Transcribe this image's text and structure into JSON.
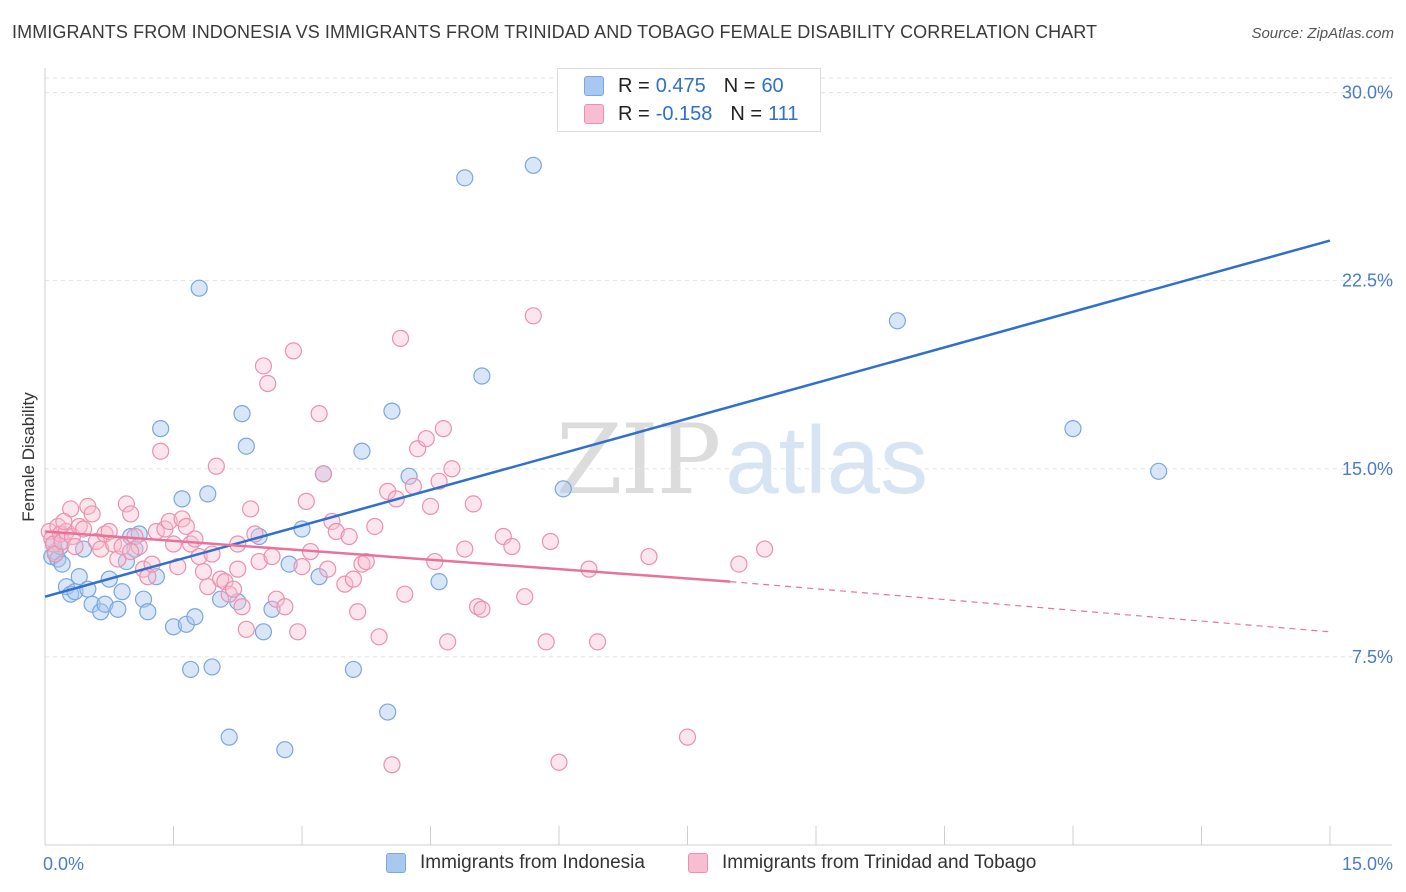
{
  "title": "IMMIGRANTS FROM INDONESIA VS IMMIGRANTS FROM TRINIDAD AND TOBAGO FEMALE DISABILITY CORRELATION CHART",
  "source": "Source: ZipAtlas.com",
  "watermark": {
    "zip": "ZIP",
    "atlas": "atlas"
  },
  "legend": {
    "rows": [
      {
        "r_label": "R =",
        "r_value": "0.475",
        "n_label": "N =",
        "n_value": "60",
        "color": "#a9c8f0",
        "border": "#7aa7df"
      },
      {
        "r_label": "R =",
        "r_value": "-0.158",
        "n_label": "N =",
        "n_value": "111",
        "color": "#f7bdd0",
        "border": "#ec90ad"
      }
    ]
  },
  "bottom_legend": [
    {
      "label": "Immigrants from Indonesia",
      "color": "#a9c8f0",
      "border": "#7aa7df"
    },
    {
      "label": "Immigrants from Trinidad and Tobago",
      "color": "#f7bdd0",
      "border": "#ec90ad"
    }
  ],
  "chart_data": {
    "type": "scatter",
    "ylabel": "Female Disability",
    "xlim": [
      0,
      15
    ],
    "ylim": [
      0,
      30.9
    ],
    "x_ticks": [
      "0.0%",
      "15.0%"
    ],
    "y_ticks": [
      {
        "value": 7.5,
        "label": "7.5%"
      },
      {
        "value": 15.0,
        "label": "15.0%"
      },
      {
        "value": 22.5,
        "label": "22.5%"
      },
      {
        "value": 30.0,
        "label": "30.0%"
      }
    ],
    "grid": "horizontal dashed",
    "series": [
      {
        "name": "Immigrants from Indonesia",
        "color": "#7aa7df",
        "fill": "rgba(169,200,240,0.45)",
        "line_color": "#2f6fce",
        "trend": {
          "x0": 0.0,
          "y0": 9.9,
          "x1": 15.0,
          "y1": 24.1
        },
        "points": [
          [
            0.08,
            11.5
          ],
          [
            0.12,
            11.7
          ],
          [
            0.15,
            11.4
          ],
          [
            0.18,
            11.9
          ],
          [
            0.2,
            11.2
          ],
          [
            0.25,
            10.3
          ],
          [
            0.3,
            10.0
          ],
          [
            0.35,
            10.1
          ],
          [
            0.4,
            10.7
          ],
          [
            0.45,
            11.8
          ],
          [
            0.5,
            10.2
          ],
          [
            0.55,
            9.6
          ],
          [
            0.65,
            9.3
          ],
          [
            0.7,
            9.6
          ],
          [
            0.75,
            10.6
          ],
          [
            0.85,
            9.4
          ],
          [
            0.95,
            11.3
          ],
          [
            1.0,
            12.3
          ],
          [
            1.05,
            11.8
          ],
          [
            1.1,
            12.4
          ],
          [
            1.15,
            9.8
          ],
          [
            1.2,
            9.3
          ],
          [
            1.3,
            10.7
          ],
          [
            1.35,
            16.6
          ],
          [
            1.5,
            8.7
          ],
          [
            1.6,
            13.8
          ],
          [
            1.65,
            8.8
          ],
          [
            1.7,
            7.0
          ],
          [
            1.75,
            9.1
          ],
          [
            1.8,
            22.2
          ],
          [
            1.9,
            14.0
          ],
          [
            1.95,
            7.1
          ],
          [
            2.05,
            9.8
          ],
          [
            2.15,
            4.3
          ],
          [
            2.25,
            9.7
          ],
          [
            2.3,
            17.2
          ],
          [
            2.35,
            15.9
          ],
          [
            2.5,
            12.3
          ],
          [
            2.55,
            8.5
          ],
          [
            2.65,
            9.4
          ],
          [
            2.8,
            3.8
          ],
          [
            2.85,
            11.2
          ],
          [
            3.0,
            12.6
          ],
          [
            3.2,
            10.7
          ],
          [
            3.25,
            14.8
          ],
          [
            3.6,
            7.0
          ],
          [
            3.7,
            15.7
          ],
          [
            4.0,
            5.3
          ],
          [
            4.05,
            17.3
          ],
          [
            4.25,
            14.7
          ],
          [
            4.6,
            10.5
          ],
          [
            4.9,
            26.6
          ],
          [
            5.1,
            18.7
          ],
          [
            5.7,
            27.1
          ],
          [
            6.05,
            14.2
          ],
          [
            9.95,
            20.9
          ],
          [
            12.0,
            16.6
          ],
          [
            13.0,
            14.9
          ],
          [
            0.1,
            12.0
          ],
          [
            0.9,
            10.1
          ]
        ]
      },
      {
        "name": "Immigrants from Trinidad and Tobago",
        "color": "#ec90ad",
        "fill": "rgba(247,189,208,0.4)",
        "line_color": "#e8739a",
        "trend": {
          "x0": 0.0,
          "y0": 12.5,
          "x1": 8.0,
          "y1": 10.5
        },
        "trend_dashed": {
          "x0": 8.0,
          "y0": 10.5,
          "x1": 15.0,
          "y1": 8.5
        },
        "points": [
          [
            0.05,
            12.5
          ],
          [
            0.08,
            12.2
          ],
          [
            0.1,
            12.0
          ],
          [
            0.12,
            11.6
          ],
          [
            0.15,
            12.7
          ],
          [
            0.18,
            12.4
          ],
          [
            0.2,
            12.1
          ],
          [
            0.25,
            12.5
          ],
          [
            0.3,
            13.4
          ],
          [
            0.32,
            12.3
          ],
          [
            0.35,
            11.9
          ],
          [
            0.4,
            12.7
          ],
          [
            0.45,
            12.6
          ],
          [
            0.5,
            13.5
          ],
          [
            0.55,
            13.2
          ],
          [
            0.6,
            12.1
          ],
          [
            0.65,
            11.8
          ],
          [
            0.7,
            12.4
          ],
          [
            0.75,
            12.5
          ],
          [
            0.8,
            12.0
          ],
          [
            0.85,
            11.4
          ],
          [
            0.9,
            11.9
          ],
          [
            0.95,
            13.6
          ],
          [
            1.0,
            13.2
          ],
          [
            1.05,
            12.3
          ],
          [
            1.1,
            11.9
          ],
          [
            1.15,
            11.0
          ],
          [
            1.2,
            10.7
          ],
          [
            1.25,
            11.2
          ],
          [
            1.3,
            12.5
          ],
          [
            1.35,
            15.7
          ],
          [
            1.4,
            12.6
          ],
          [
            1.45,
            12.9
          ],
          [
            1.5,
            12.0
          ],
          [
            1.55,
            11.1
          ],
          [
            1.6,
            13.0
          ],
          [
            1.65,
            12.7
          ],
          [
            1.7,
            12.0
          ],
          [
            1.75,
            12.2
          ],
          [
            1.8,
            11.5
          ],
          [
            1.85,
            10.9
          ],
          [
            1.9,
            10.3
          ],
          [
            1.95,
            11.6
          ],
          [
            2.0,
            15.1
          ],
          [
            2.05,
            10.6
          ],
          [
            2.1,
            10.5
          ],
          [
            2.15,
            10.0
          ],
          [
            2.2,
            10.2
          ],
          [
            2.25,
            11.0
          ],
          [
            2.3,
            9.5
          ],
          [
            2.35,
            8.6
          ],
          [
            2.4,
            13.4
          ],
          [
            2.45,
            12.4
          ],
          [
            2.5,
            11.3
          ],
          [
            2.55,
            19.1
          ],
          [
            2.6,
            18.4
          ],
          [
            2.65,
            11.5
          ],
          [
            2.7,
            9.8
          ],
          [
            2.8,
            9.5
          ],
          [
            2.9,
            19.7
          ],
          [
            2.95,
            8.5
          ],
          [
            3.05,
            13.7
          ],
          [
            3.1,
            11.7
          ],
          [
            3.2,
            17.2
          ],
          [
            3.25,
            14.8
          ],
          [
            3.3,
            11.0
          ],
          [
            3.35,
            12.9
          ],
          [
            3.4,
            12.5
          ],
          [
            3.5,
            10.4
          ],
          [
            3.55,
            12.3
          ],
          [
            3.6,
            10.6
          ],
          [
            3.65,
            9.3
          ],
          [
            3.7,
            11.2
          ],
          [
            3.75,
            11.3
          ],
          [
            3.85,
            12.7
          ],
          [
            3.9,
            8.3
          ],
          [
            4.0,
            14.1
          ],
          [
            4.05,
            3.2
          ],
          [
            4.1,
            13.8
          ],
          [
            4.15,
            20.2
          ],
          [
            4.2,
            10.0
          ],
          [
            4.3,
            14.3
          ],
          [
            4.35,
            15.8
          ],
          [
            4.45,
            16.2
          ],
          [
            4.5,
            13.5
          ],
          [
            4.6,
            14.5
          ],
          [
            4.65,
            16.6
          ],
          [
            4.7,
            8.1
          ],
          [
            4.75,
            15.0
          ],
          [
            4.9,
            11.8
          ],
          [
            5.0,
            13.6
          ],
          [
            5.05,
            9.5
          ],
          [
            5.1,
            9.4
          ],
          [
            5.35,
            12.3
          ],
          [
            5.45,
            11.9
          ],
          [
            5.6,
            9.9
          ],
          [
            5.7,
            21.1
          ],
          [
            5.85,
            8.1
          ],
          [
            5.9,
            12.1
          ],
          [
            6.0,
            3.3
          ],
          [
            6.35,
            11.0
          ],
          [
            6.45,
            8.1
          ],
          [
            7.05,
            11.5
          ],
          [
            7.5,
            4.3
          ],
          [
            8.1,
            11.2
          ],
          [
            8.4,
            11.8
          ],
          [
            0.22,
            12.9
          ],
          [
            1.0,
            11.7
          ],
          [
            2.25,
            12.0
          ],
          [
            3.0,
            11.1
          ],
          [
            4.55,
            11.3
          ]
        ]
      }
    ]
  }
}
